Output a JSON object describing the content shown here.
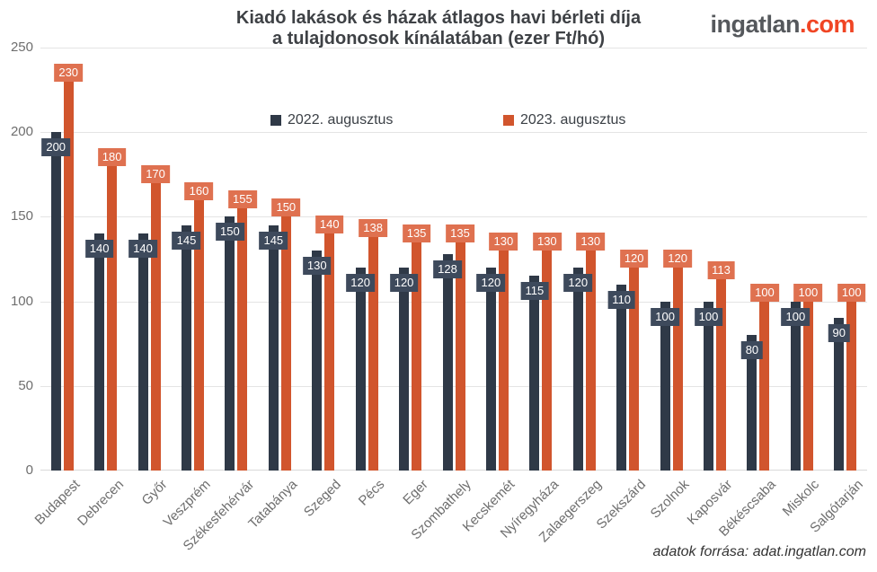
{
  "title": {
    "line1": "Kiadó lakások és házak átlagos havi bérleti díja",
    "line2": "a tulajdonosok kínálatában (ezer Ft/hó)"
  },
  "logo": {
    "name": "ingatlan",
    "tld": ".com"
  },
  "footer": {
    "text": "adatok forrása: adat.ingatlan.com"
  },
  "colors": {
    "navy_bar": "#2f3947",
    "orange_bar": "#d1552d",
    "navy_label_bg": "#3e4a5c",
    "orange_label_bg": "#df7150",
    "value_text": "#ffffff",
    "grid": "#e4e4e4",
    "axis_line": "#d9d9d9",
    "tick_text": "#6e6e6e",
    "title_text": "#3e4145",
    "legend_text": "#3b4046",
    "logo_text": "#55585c",
    "logo_accent": "#f04524",
    "footer_text": "#333333",
    "background": "#ffffff"
  },
  "chart_data": {
    "type": "bar",
    "title": "Kiadó lakások és házak átlagos havi bérleti díja a tulajdonosok kínálatában (ezer Ft/hó)",
    "xlabel": "",
    "ylabel": "",
    "ylim": [
      0,
      250
    ],
    "yticks": [
      0,
      50,
      100,
      150,
      200,
      250
    ],
    "grid": true,
    "legend_position": "top-center",
    "source_note": "adatok forrása: adat.ingatlan.com",
    "categories": [
      "Budapest",
      "Debrecen",
      "Győr",
      "Veszprém",
      "Székesfehérvár",
      "Tatabánya",
      "Szeged",
      "Pécs",
      "Eger",
      "Szombathely",
      "Kecskemét",
      "Nyíregyháza",
      "Zalaegerszeg",
      "Szekszárd",
      "Szolnok",
      "Kaposvár",
      "Békéscsaba",
      "Miskolc",
      "Salgótarján"
    ],
    "series": [
      {
        "name": "2022. augusztus",
        "color": "#2f3947",
        "label_bg": "#3e4a5c",
        "values": [
          200,
          140,
          140,
          145,
          150,
          145,
          130,
          120,
          120,
          128,
          120,
          115,
          120,
          110,
          100,
          100,
          80,
          100,
          90
        ]
      },
      {
        "name": "2023. augusztus",
        "color": "#d1552d",
        "label_bg": "#df7150",
        "values": [
          230,
          180,
          170,
          160,
          155,
          150,
          140,
          138,
          135,
          135,
          130,
          130,
          130,
          120,
          120,
          113,
          100,
          100,
          100
        ]
      }
    ]
  }
}
